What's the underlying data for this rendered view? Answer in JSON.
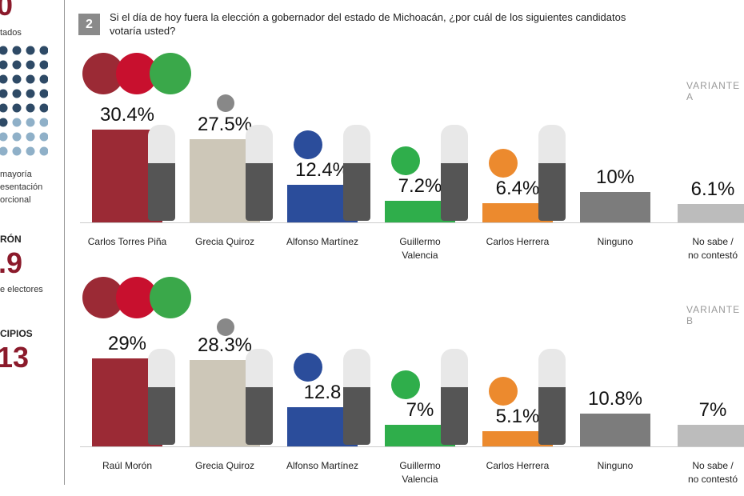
{
  "question": {
    "number": "2",
    "text": "Si el día de hoy fuera la elección a gobernador del estado de Michoacán, ¿por cuál de los siguientes candidatos votaría usted?"
  },
  "sidebar": {
    "top_number": "0",
    "top_caption": "tados",
    "note": "mayoría\nesentación\norcional",
    "heading_1": "RÓN",
    "number_1": ".9",
    "caption_1": "e electores",
    "heading_2": "CIPIOS",
    "number_2": "13"
  },
  "chart_data": [
    {
      "type": "bar",
      "title": "VARIANTE A",
      "categories": [
        "Carlos Torres Piña",
        "Grecia Quiroz",
        "Alfonso Martínez",
        "Guillermo\nValencia",
        "Carlos Herrera",
        "Ninguno",
        "No sabe /\nno contestó"
      ],
      "values": [
        30.4,
        27.5,
        12.4,
        7.2,
        6.4,
        10,
        6.1
      ],
      "value_labels": [
        "30.4%",
        "27.5%",
        "12.4%",
        "7.2%",
        "6.4%",
        "10%",
        "6.1%"
      ],
      "colors": [
        "#9b2a35",
        "#cdc7b8",
        "#2b4d9b",
        "#2fae4b",
        "#ec8a2e",
        "#7c7c7c",
        "#bcbcbc"
      ]
    },
    {
      "type": "bar",
      "title": "VARIANTE B",
      "categories": [
        "Raúl Morón",
        "Grecia Quiroz",
        "Alfonso Martínez",
        "Guillermo\nValencia",
        "Carlos Herrera",
        "Ninguno",
        "No sabe /\nno contestó"
      ],
      "values": [
        29,
        28.3,
        12.8,
        7,
        5.1,
        10.8,
        7
      ],
      "value_labels": [
        "29%",
        "28.3%",
        "12.8",
        "7%",
        "5.1%",
        "10.8%",
        "7%"
      ],
      "colors": [
        "#9b2a35",
        "#cdc7b8",
        "#2b4d9b",
        "#2fae4b",
        "#ec8a2e",
        "#7c7c7c",
        "#bcbcbc"
      ]
    }
  ]
}
